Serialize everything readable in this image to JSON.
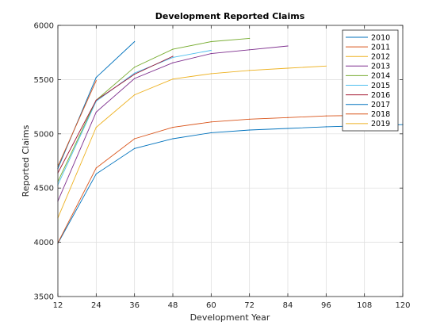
{
  "chart_data": {
    "type": "line",
    "title": "Development Reported Claims",
    "xlabel": "Development Year",
    "ylabel": "Reported Claims",
    "xlim": [
      12,
      120
    ],
    "ylim": [
      3500,
      6000
    ],
    "xticks": [
      "12",
      "24",
      "36",
      "48",
      "60",
      "72",
      "84",
      "96",
      "108",
      "120"
    ],
    "yticks": [
      "3500",
      "4000",
      "4500",
      "5000",
      "5500",
      "6000"
    ],
    "grid": true,
    "legend_position": "top-right",
    "series": [
      {
        "name": "2010",
        "color": "#0072BD",
        "x": [
          12,
          24,
          36,
          48,
          60,
          72,
          84,
          96,
          108,
          120
        ],
        "y": [
          3990,
          4630,
          4865,
          4955,
          5010,
          5035,
          5050,
          5065,
          5075,
          5085
        ]
      },
      {
        "name": "2011",
        "color": "#D95319",
        "x": [
          12,
          24,
          36,
          48,
          60,
          72,
          84,
          96,
          108
        ],
        "y": [
          3995,
          4685,
          4955,
          5060,
          5110,
          5135,
          5150,
          5165,
          5170
        ]
      },
      {
        "name": "2012",
        "color": "#EDB120",
        "x": [
          12,
          24,
          36,
          48,
          60,
          72,
          84,
          96
        ],
        "y": [
          4225,
          5060,
          5360,
          5505,
          5555,
          5585,
          5605,
          5625
        ]
      },
      {
        "name": "2013",
        "color": "#7E2F8E",
        "x": [
          12,
          24,
          36,
          48,
          60,
          72,
          84
        ],
        "y": [
          4380,
          5200,
          5510,
          5655,
          5740,
          5775,
          5810
        ]
      },
      {
        "name": "2014",
        "color": "#77AC30",
        "x": [
          12,
          24,
          36,
          48,
          60,
          72
        ],
        "y": [
          4560,
          5310,
          5615,
          5780,
          5850,
          5880
        ]
      },
      {
        "name": "2015",
        "color": "#4DBEEE",
        "x": [
          12,
          24,
          36,
          48,
          60
        ],
        "y": [
          4530,
          5300,
          5560,
          5705,
          5770
        ]
      },
      {
        "name": "2016",
        "color": "#A2142F",
        "x": [
          12,
          24,
          36,
          48
        ],
        "y": [
          4640,
          5310,
          5550,
          5715
        ]
      },
      {
        "name": "2017",
        "color": "#0072BD",
        "x": [
          12,
          24,
          36
        ],
        "y": [
          4680,
          5520,
          5850
        ]
      },
      {
        "name": "2018",
        "color": "#D95319",
        "x": [
          12,
          24
        ],
        "y": [
          4700,
          5490
        ]
      },
      {
        "name": "2019",
        "color": "#EDB120",
        "x": [
          12
        ],
        "y": [
          4720
        ]
      }
    ]
  }
}
